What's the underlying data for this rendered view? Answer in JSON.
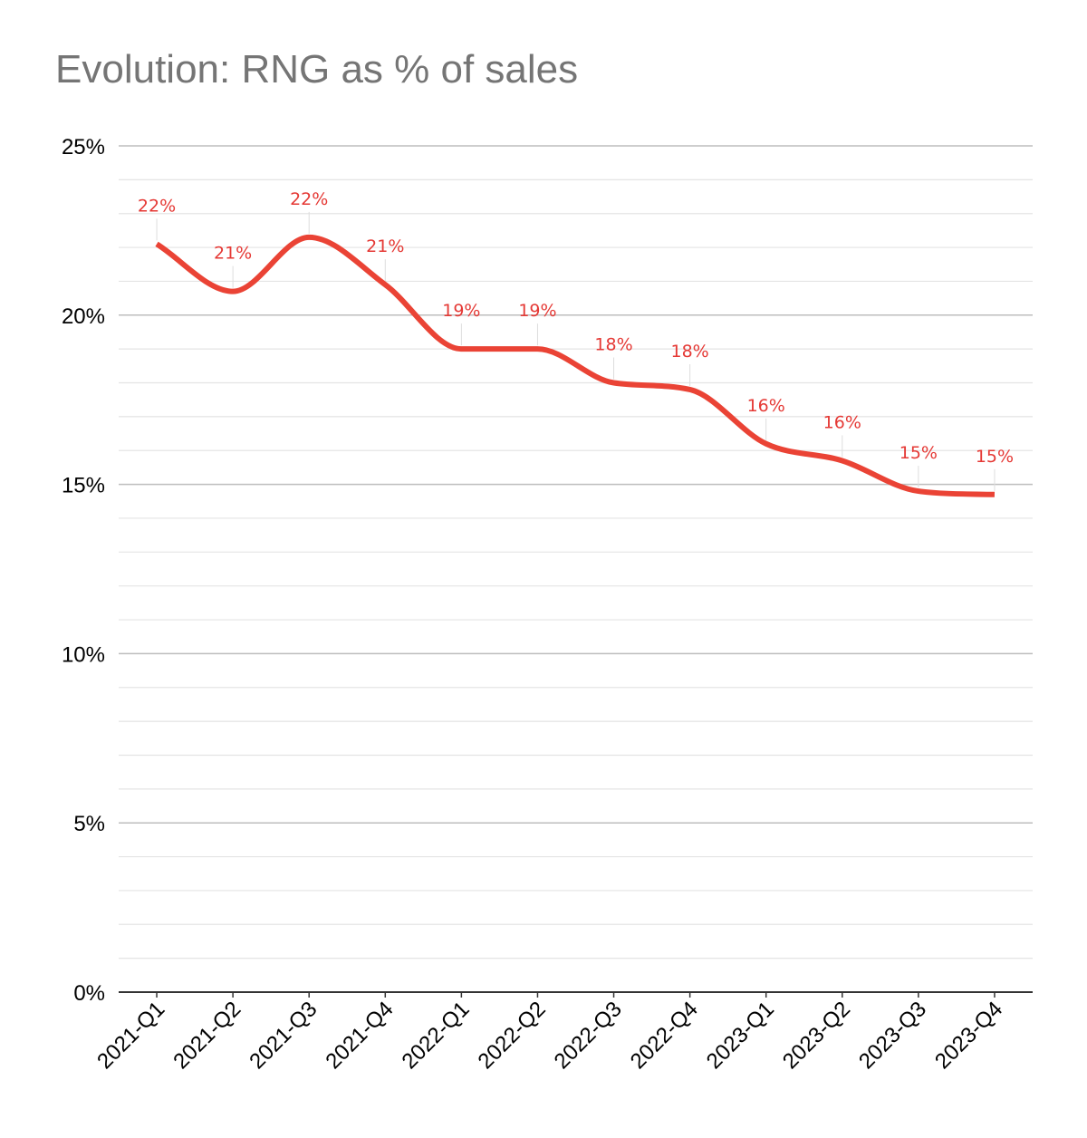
{
  "chart_data": {
    "type": "line",
    "title": "Evolution: RNG as % of sales",
    "xlabel": "",
    "ylabel": "",
    "categories": [
      "2021-Q1",
      "2021-Q2",
      "2021-Q3",
      "2021-Q4",
      "2022-Q1",
      "2022-Q2",
      "2022-Q3",
      "2022-Q4",
      "2023-Q1",
      "2023-Q2",
      "2023-Q3",
      "2023-Q4"
    ],
    "series": [
      {
        "values": [
          0.221,
          0.207,
          0.223,
          0.209,
          0.19,
          0.19,
          0.18,
          0.178,
          0.162,
          0.157,
          0.148,
          0.147
        ],
        "data_labels": [
          "22%",
          "21%",
          "22%",
          "21%",
          "19%",
          "19%",
          "18%",
          "18%",
          "16%",
          "16%",
          "15%",
          "15%"
        ],
        "color": "#ea4335"
      }
    ],
    "ylim": [
      0,
      0.25
    ],
    "yticks": [
      0,
      0.05,
      0.1,
      0.15,
      0.2,
      0.25
    ],
    "ytick_labels": [
      "0%",
      "5%",
      "10%",
      "15%",
      "20%",
      "25%"
    ],
    "minor_gridlines_per_major": 5,
    "grid": true,
    "smooth": true,
    "legend": "none",
    "colors": {
      "line": "#ea4335",
      "label": "#e53935",
      "major_grid": "#bdbdbd",
      "minor_grid": "#e4e4e4",
      "axis": "#333333"
    }
  }
}
